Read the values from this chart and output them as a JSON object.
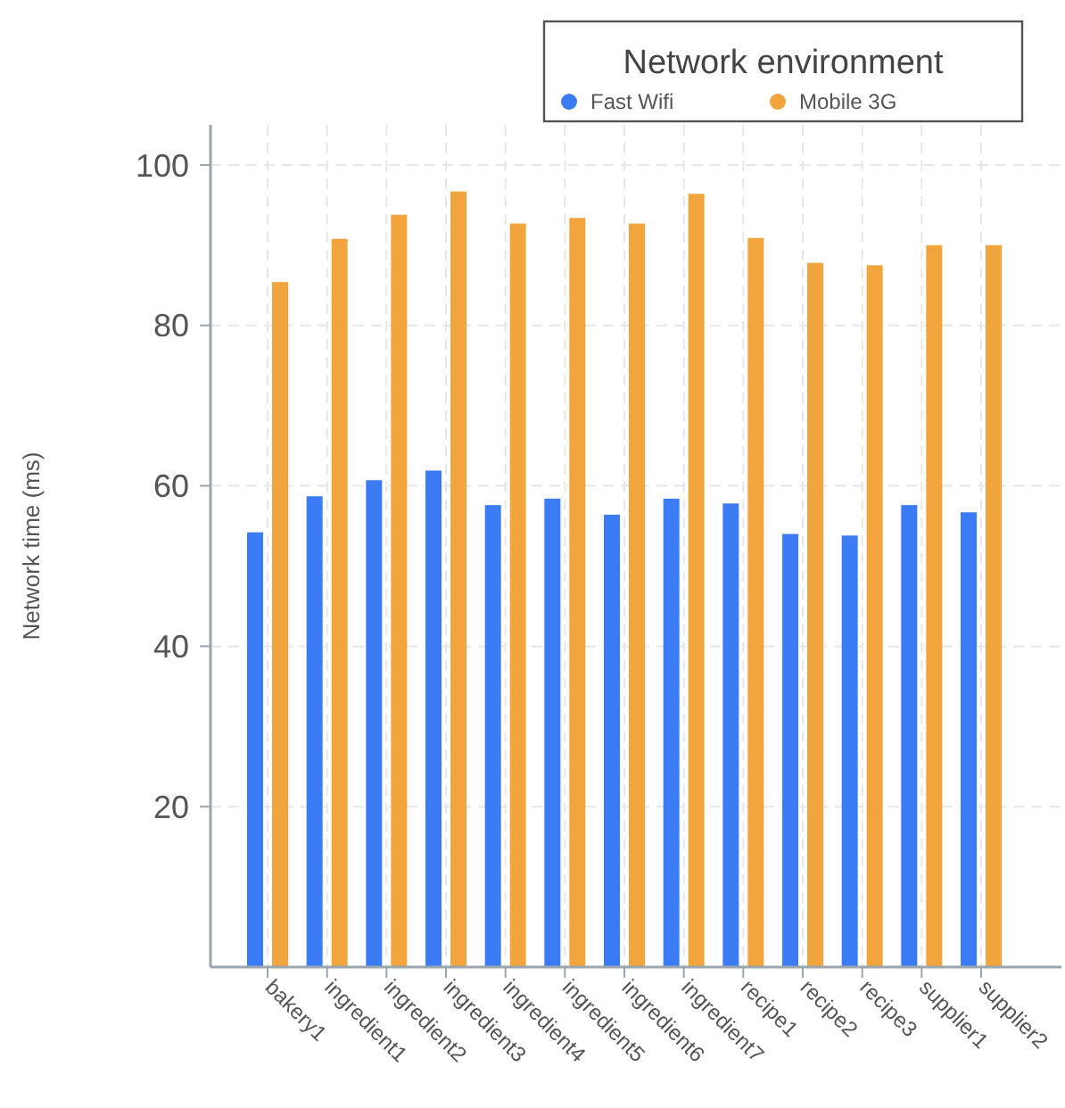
{
  "chart_data": {
    "type": "bar",
    "ylabel": "Network time (ms)",
    "legend_title": "Network environment",
    "categories": [
      "bakery1",
      "ingredient1",
      "ingredient2",
      "ingredient3",
      "ingredient4",
      "ingredient5",
      "ingredient6",
      "ingredient7",
      "recipe1",
      "recipe2",
      "recipe3",
      "supplier1",
      "supplier2"
    ],
    "series": [
      {
        "name": "Fast Wifi",
        "color": "#3b7cf4",
        "values": [
          54.2,
          58.7,
          60.7,
          61.9,
          57.6,
          58.4,
          56.4,
          58.4,
          57.8,
          54.0,
          53.8,
          57.6,
          56.7
        ]
      },
      {
        "name": "Mobile 3G",
        "color": "#f2a53c",
        "values": [
          85.4,
          90.8,
          93.8,
          96.7,
          92.7,
          93.4,
          92.7,
          96.4,
          90.9,
          87.8,
          87.5,
          90.0,
          90.0
        ]
      }
    ],
    "ylim": [
      0,
      105
    ],
    "yticks": [
      20,
      40,
      60,
      80,
      100
    ],
    "grid": true,
    "legend": "top right"
  }
}
